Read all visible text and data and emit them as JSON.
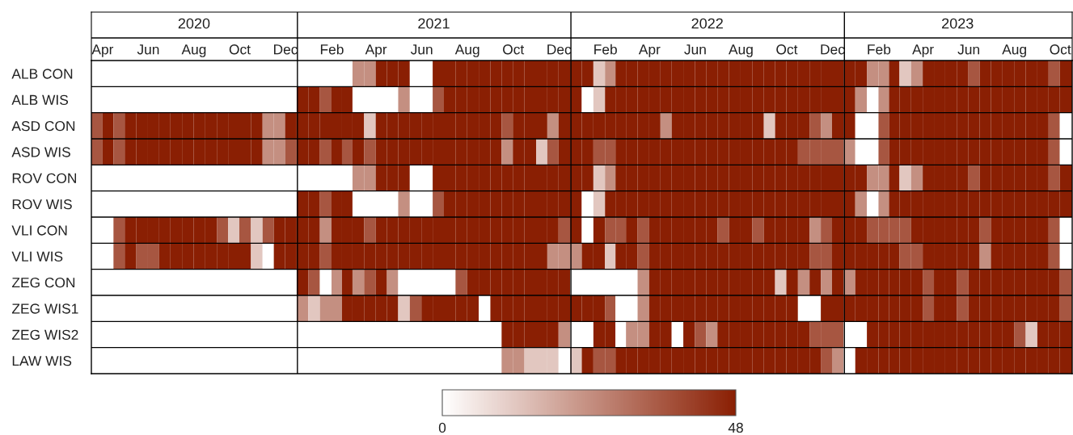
{
  "chart_data": {
    "type": "heatmap",
    "x": [
      "2020-04-08",
      "2020-04-23",
      "2020-05-08",
      "2020-05-23",
      "2020-06-08",
      "2020-06-23",
      "2020-07-08",
      "2020-07-23",
      "2020-08-08",
      "2020-08-23",
      "2020-09-08",
      "2020-09-23",
      "2020-10-08",
      "2020-10-23",
      "2020-11-08",
      "2020-11-23",
      "2020-12-08",
      "2020-12-23",
      "2021-01-08",
      "2021-01-23",
      "2021-02-08",
      "2021-02-23",
      "2021-03-08",
      "2021-03-23",
      "2021-04-08",
      "2021-04-23",
      "2021-05-08",
      "2021-05-23",
      "2021-06-08",
      "2021-06-23",
      "2021-07-08",
      "2021-07-23",
      "2021-08-08",
      "2021-08-23",
      "2021-09-08",
      "2021-09-23",
      "2021-10-08",
      "2021-10-23",
      "2021-11-08",
      "2021-11-23",
      "2021-12-08",
      "2021-12-23",
      "2022-01-08",
      "2022-01-23",
      "2022-02-08",
      "2022-02-23",
      "2022-03-08",
      "2022-03-23",
      "2022-04-08",
      "2022-04-23",
      "2022-05-08",
      "2022-05-23",
      "2022-06-08",
      "2022-06-23",
      "2022-07-08",
      "2022-07-23",
      "2022-08-08",
      "2022-08-23",
      "2022-09-08",
      "2022-09-23",
      "2022-10-08",
      "2022-10-23",
      "2022-11-08",
      "2022-11-23",
      "2022-12-08",
      "2022-12-23",
      "2023-01-08",
      "2023-01-23",
      "2023-02-08",
      "2023-02-23",
      "2023-03-08",
      "2023-03-23",
      "2023-04-08",
      "2023-04-23",
      "2023-05-08",
      "2023-05-23",
      "2023-06-08",
      "2023-06-23",
      "2023-07-08",
      "2023-07-23",
      "2023-08-08",
      "2023-08-23",
      "2023-09-08",
      "2023-09-23",
      "2023-10-08",
      "2023-10-23"
    ],
    "xlim": [
      "2020-04-01",
      "2023-11-01"
    ],
    "x2lim": [
      "2020-04-01",
      "2023-11-01"
    ],
    "xticks": [
      {
        "value": "2020-04-16",
        "label": "Apr"
      },
      {
        "value": "2020-06-16",
        "label": "Jun"
      },
      {
        "value": "2020-08-16",
        "label": "Aug"
      },
      {
        "value": "2020-10-16",
        "label": "Oct"
      },
      {
        "value": "2020-12-16",
        "label": "Dec"
      },
      {
        "value": "2021-02-16",
        "label": "Feb"
      },
      {
        "value": "2021-04-16",
        "label": "Apr"
      },
      {
        "value": "2021-06-16",
        "label": "Jun"
      },
      {
        "value": "2021-08-16",
        "label": "Aug"
      },
      {
        "value": "2021-10-16",
        "label": "Oct"
      },
      {
        "value": "2021-12-16",
        "label": "Dec"
      },
      {
        "value": "2022-02-16",
        "label": "Feb"
      },
      {
        "value": "2022-04-16",
        "label": "Apr"
      },
      {
        "value": "2022-06-16",
        "label": "Jun"
      },
      {
        "value": "2022-08-16",
        "label": "Aug"
      },
      {
        "value": "2022-10-16",
        "label": "Oct"
      },
      {
        "value": "2022-12-16",
        "label": "Dec"
      },
      {
        "value": "2023-02-16",
        "label": "Feb"
      },
      {
        "value": "2023-04-16",
        "label": "Apr"
      },
      {
        "value": "2023-06-16",
        "label": "Jun"
      },
      {
        "value": "2023-08-16",
        "label": "Aug"
      },
      {
        "value": "2023-10-16",
        "label": "Oct"
      }
    ],
    "x2ticks": [
      {
        "value": "2020-08-16",
        "label": "2020"
      },
      {
        "value": "2021-07-02",
        "label": "2021"
      },
      {
        "value": "2022-07-02",
        "label": "2022"
      },
      {
        "value": "2023-06-01",
        "label": "2023"
      }
    ],
    "ref_lines": [
      {
        "axis": "x",
        "value": "2021-01-01",
        "label": null,
        "color": "#000000"
      },
      {
        "axis": "x",
        "value": "2022-01-01",
        "label": null,
        "color": "#000000"
      },
      {
        "axis": "x",
        "value": "2023-01-01",
        "label": null,
        "color": "#000000"
      }
    ],
    "y_categories": [
      "ALB CON",
      "ALB WIS",
      "ASD CON",
      "ASD WIS",
      "ROV CON",
      "ROV WIS",
      "VLI CON",
      "VLI WIS",
      "ZEG CON",
      "ZEG WIS1",
      "ZEG WIS2",
      "LAW WIS"
    ],
    "cells": [
      [
        0,
        0,
        0,
        0,
        0,
        0,
        0,
        0,
        0,
        0,
        0,
        0,
        0,
        0,
        0,
        0,
        0,
        0,
        0,
        0,
        0,
        0,
        0,
        24,
        24,
        48,
        48,
        48,
        0,
        0,
        48,
        48,
        48,
        48,
        48,
        48,
        48,
        48,
        48,
        48,
        48,
        48,
        48,
        48,
        12,
        24,
        48,
        48,
        48,
        48,
        48,
        48,
        48,
        48,
        48,
        48,
        48,
        48,
        48,
        48,
        48,
        48,
        48,
        48,
        48,
        48,
        48,
        48,
        24,
        24,
        48,
        12,
        24,
        48,
        48,
        48,
        48,
        36,
        48,
        48,
        48,
        48,
        48,
        48,
        36,
        48
      ],
      [
        0,
        0,
        0,
        0,
        0,
        0,
        0,
        0,
        0,
        0,
        0,
        0,
        0,
        0,
        0,
        0,
        0,
        0,
        48,
        48,
        36,
        48,
        48,
        0,
        0,
        0,
        0,
        24,
        0,
        0,
        36,
        48,
        48,
        48,
        48,
        48,
        48,
        48,
        48,
        48,
        48,
        48,
        48,
        0,
        12,
        48,
        48,
        48,
        48,
        48,
        48,
        48,
        48,
        48,
        48,
        48,
        48,
        48,
        48,
        48,
        48,
        48,
        48,
        48,
        48,
        48,
        48,
        24,
        0,
        24,
        48,
        48,
        48,
        48,
        48,
        48,
        48,
        48,
        48,
        48,
        48,
        48,
        48,
        48,
        48,
        48
      ],
      [
        36,
        48,
        36,
        48,
        48,
        48,
        48,
        48,
        48,
        48,
        48,
        48,
        48,
        48,
        48,
        24,
        24,
        48,
        48,
        48,
        48,
        48,
        48,
        48,
        12,
        48,
        48,
        48,
        48,
        48,
        48,
        48,
        48,
        48,
        48,
        48,
        36,
        48,
        48,
        48,
        24,
        48,
        48,
        48,
        48,
        48,
        48,
        48,
        48,
        48,
        24,
        48,
        48,
        48,
        48,
        48,
        48,
        48,
        48,
        12,
        48,
        48,
        48,
        36,
        24,
        48,
        48,
        0,
        0,
        36,
        48,
        48,
        48,
        48,
        48,
        48,
        48,
        48,
        48,
        48,
        48,
        48,
        48,
        48,
        36,
        0
      ],
      [
        36,
        48,
        36,
        48,
        48,
        48,
        48,
        48,
        48,
        48,
        48,
        48,
        48,
        48,
        48,
        24,
        24,
        36,
        48,
        48,
        36,
        48,
        36,
        48,
        36,
        48,
        48,
        48,
        48,
        48,
        48,
        48,
        48,
        48,
        48,
        48,
        24,
        48,
        48,
        12,
        36,
        48,
        48,
        48,
        36,
        36,
        48,
        48,
        48,
        48,
        48,
        48,
        48,
        48,
        48,
        48,
        48,
        48,
        48,
        48,
        48,
        48,
        36,
        36,
        36,
        36,
        24,
        0,
        0,
        36,
        48,
        48,
        48,
        48,
        48,
        48,
        48,
        48,
        48,
        48,
        48,
        48,
        48,
        48,
        36,
        0
      ],
      [
        0,
        0,
        0,
        0,
        0,
        0,
        0,
        0,
        0,
        0,
        0,
        0,
        0,
        0,
        0,
        0,
        0,
        0,
        0,
        0,
        0,
        0,
        0,
        24,
        24,
        48,
        48,
        48,
        0,
        0,
        48,
        48,
        48,
        48,
        48,
        48,
        48,
        48,
        48,
        48,
        48,
        48,
        48,
        48,
        12,
        24,
        48,
        48,
        48,
        48,
        48,
        48,
        48,
        48,
        48,
        48,
        48,
        48,
        48,
        48,
        48,
        48,
        48,
        48,
        48,
        48,
        48,
        48,
        24,
        24,
        48,
        12,
        24,
        48,
        48,
        48,
        48,
        36,
        48,
        48,
        48,
        48,
        48,
        48,
        36,
        48
      ],
      [
        0,
        0,
        0,
        0,
        0,
        0,
        0,
        0,
        0,
        0,
        0,
        0,
        0,
        0,
        0,
        0,
        0,
        0,
        48,
        48,
        36,
        48,
        48,
        0,
        0,
        0,
        0,
        24,
        0,
        0,
        36,
        48,
        48,
        48,
        48,
        48,
        48,
        48,
        48,
        48,
        48,
        48,
        48,
        0,
        12,
        48,
        48,
        48,
        48,
        48,
        48,
        48,
        48,
        48,
        48,
        48,
        48,
        48,
        48,
        48,
        48,
        48,
        48,
        48,
        48,
        48,
        48,
        24,
        0,
        24,
        48,
        48,
        48,
        48,
        48,
        48,
        48,
        48,
        48,
        48,
        48,
        48,
        48,
        48,
        48,
        48
      ],
      [
        0,
        0,
        36,
        48,
        48,
        48,
        48,
        48,
        48,
        48,
        48,
        36,
        12,
        36,
        12,
        36,
        48,
        48,
        48,
        48,
        24,
        48,
        48,
        48,
        36,
        48,
        48,
        48,
        48,
        48,
        48,
        48,
        48,
        48,
        48,
        48,
        48,
        48,
        48,
        48,
        48,
        36,
        48,
        0,
        48,
        36,
        36,
        48,
        36,
        48,
        48,
        48,
        48,
        48,
        48,
        36,
        48,
        48,
        36,
        48,
        48,
        48,
        48,
        24,
        36,
        48,
        48,
        48,
        36,
        36,
        36,
        36,
        48,
        48,
        48,
        48,
        48,
        48,
        36,
        48,
        48,
        48,
        48,
        48,
        36,
        0
      ],
      [
        0,
        0,
        36,
        48,
        36,
        36,
        48,
        48,
        48,
        48,
        48,
        48,
        48,
        48,
        12,
        0,
        48,
        48,
        48,
        48,
        36,
        48,
        48,
        48,
        48,
        48,
        48,
        48,
        48,
        48,
        48,
        48,
        48,
        48,
        48,
        48,
        48,
        48,
        48,
        48,
        24,
        24,
        24,
        48,
        48,
        12,
        48,
        48,
        36,
        48,
        48,
        48,
        48,
        48,
        48,
        48,
        48,
        48,
        48,
        48,
        48,
        48,
        48,
        36,
        36,
        48,
        48,
        48,
        48,
        48,
        48,
        36,
        36,
        48,
        48,
        48,
        48,
        48,
        24,
        48,
        48,
        48,
        48,
        48,
        36,
        0
      ],
      [
        0,
        0,
        0,
        0,
        0,
        0,
        0,
        0,
        0,
        0,
        0,
        0,
        0,
        0,
        0,
        0,
        0,
        0,
        48,
        36,
        0,
        24,
        48,
        24,
        36,
        48,
        24,
        0,
        0,
        0,
        0,
        0,
        36,
        48,
        48,
        48,
        48,
        48,
        48,
        48,
        48,
        48,
        0,
        0,
        0,
        0,
        0,
        0,
        24,
        48,
        48,
        48,
        48,
        48,
        48,
        48,
        48,
        48,
        48,
        48,
        12,
        48,
        24,
        48,
        24,
        48,
        24,
        48,
        48,
        48,
        48,
        48,
        48,
        36,
        48,
        48,
        36,
        48,
        48,
        48,
        48,
        48,
        48,
        48,
        48,
        36
      ],
      [
        0,
        0,
        0,
        0,
        0,
        0,
        0,
        0,
        0,
        0,
        0,
        0,
        0,
        0,
        0,
        0,
        0,
        0,
        24,
        12,
        24,
        24,
        48,
        48,
        48,
        48,
        48,
        12,
        36,
        48,
        48,
        48,
        48,
        48,
        0,
        48,
        48,
        48,
        48,
        48,
        48,
        48,
        48,
        48,
        48,
        36,
        0,
        0,
        24,
        48,
        48,
        48,
        48,
        48,
        48,
        48,
        48,
        48,
        48,
        48,
        48,
        48,
        0,
        0,
        48,
        48,
        48,
        48,
        48,
        48,
        48,
        48,
        48,
        36,
        48,
        48,
        36,
        48,
        48,
        48,
        48,
        48,
        48,
        48,
        48,
        36
      ],
      [
        0,
        0,
        0,
        0,
        0,
        0,
        0,
        0,
        0,
        0,
        0,
        0,
        0,
        0,
        0,
        0,
        0,
        0,
        0,
        0,
        0,
        0,
        0,
        0,
        0,
        0,
        0,
        0,
        0,
        0,
        0,
        0,
        0,
        0,
        0,
        0,
        48,
        48,
        48,
        48,
        48,
        24,
        0,
        0,
        48,
        48,
        0,
        24,
        24,
        48,
        48,
        0,
        48,
        36,
        24,
        48,
        48,
        48,
        48,
        48,
        48,
        48,
        48,
        36,
        36,
        36,
        0,
        0,
        48,
        48,
        48,
        48,
        48,
        48,
        48,
        48,
        48,
        48,
        48,
        48,
        48,
        36,
        12,
        48,
        48,
        48
      ],
      [
        0,
        0,
        0,
        0,
        0,
        0,
        0,
        0,
        0,
        0,
        0,
        0,
        0,
        0,
        0,
        0,
        0,
        0,
        0,
        0,
        0,
        0,
        0,
        0,
        0,
        0,
        0,
        0,
        0,
        0,
        0,
        0,
        0,
        0,
        0,
        0,
        24,
        24,
        12,
        12,
        12,
        0,
        12,
        48,
        36,
        36,
        48,
        48,
        48,
        48,
        48,
        48,
        48,
        48,
        48,
        48,
        48,
        48,
        48,
        48,
        48,
        48,
        48,
        48,
        36,
        24,
        0,
        48,
        48,
        48,
        48,
        48,
        48,
        48,
        48,
        48,
        48,
        48,
        48,
        48,
        48,
        48,
        48,
        48,
        48,
        48
      ]
    ],
    "clim": [
      0,
      48
    ],
    "cticks": [
      0,
      48
    ],
    "grid": "y"
  }
}
